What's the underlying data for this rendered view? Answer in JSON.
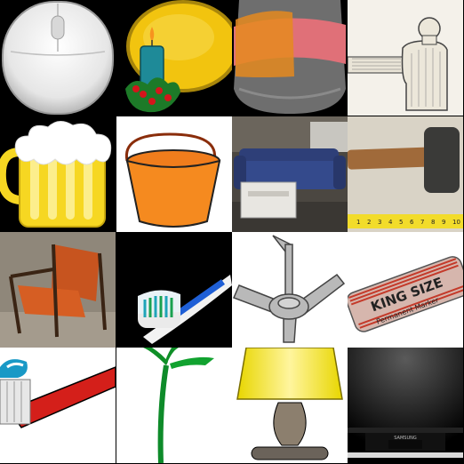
{
  "grid": {
    "rows": 4,
    "cols": 4,
    "tiles": [
      {
        "id": "mouse",
        "icon": "computer-mouse-icon",
        "bg": "#000000"
      },
      {
        "id": "candle",
        "icon": "candle-icon",
        "bg": "#000000"
      },
      {
        "id": "thermos",
        "icon": "thermos-icon",
        "bg": "#000000"
      },
      {
        "id": "hammer-sketch",
        "icon": "hammer-icon",
        "bg": "#f4f1ea"
      },
      {
        "id": "beer",
        "icon": "beer-mug-icon",
        "bg": "#000000"
      },
      {
        "id": "bucket",
        "icon": "bucket-icon",
        "bg": "#ffffff"
      },
      {
        "id": "sofa",
        "icon": "sofa-icon",
        "bg": "#5a5650"
      },
      {
        "id": "mallet",
        "icon": "mallet-icon",
        "bg": "#d9d3c6"
      },
      {
        "id": "chair",
        "icon": "chair-icon",
        "bg": "#8a8276"
      },
      {
        "id": "toothbrush-photo",
        "icon": "toothbrush-icon",
        "bg": "#000000"
      },
      {
        "id": "ceiling-fan",
        "icon": "ceiling-fan-icon",
        "bg": "#ffffff"
      },
      {
        "id": "marker",
        "icon": "marker-icon",
        "bg": "#ffffff"
      },
      {
        "id": "toothbrush-clipart",
        "icon": "toothbrush-icon",
        "bg": "#ffffff"
      },
      {
        "id": "palm",
        "icon": "palm-tree-icon",
        "bg": "#ffffff"
      },
      {
        "id": "lamp",
        "icon": "lamp-icon",
        "bg": "#ffffff"
      },
      {
        "id": "monitor",
        "icon": "monitor-icon",
        "bg": "#000000"
      }
    ]
  },
  "marker_text": {
    "line1": "KING SIZE",
    "line2": "Permanent Marker"
  },
  "ruler_numbers": [
    "1",
    "2",
    "3",
    "4",
    "5",
    "6",
    "7",
    "8",
    "9",
    "10"
  ],
  "monitor_brand": "SAMSUNG"
}
